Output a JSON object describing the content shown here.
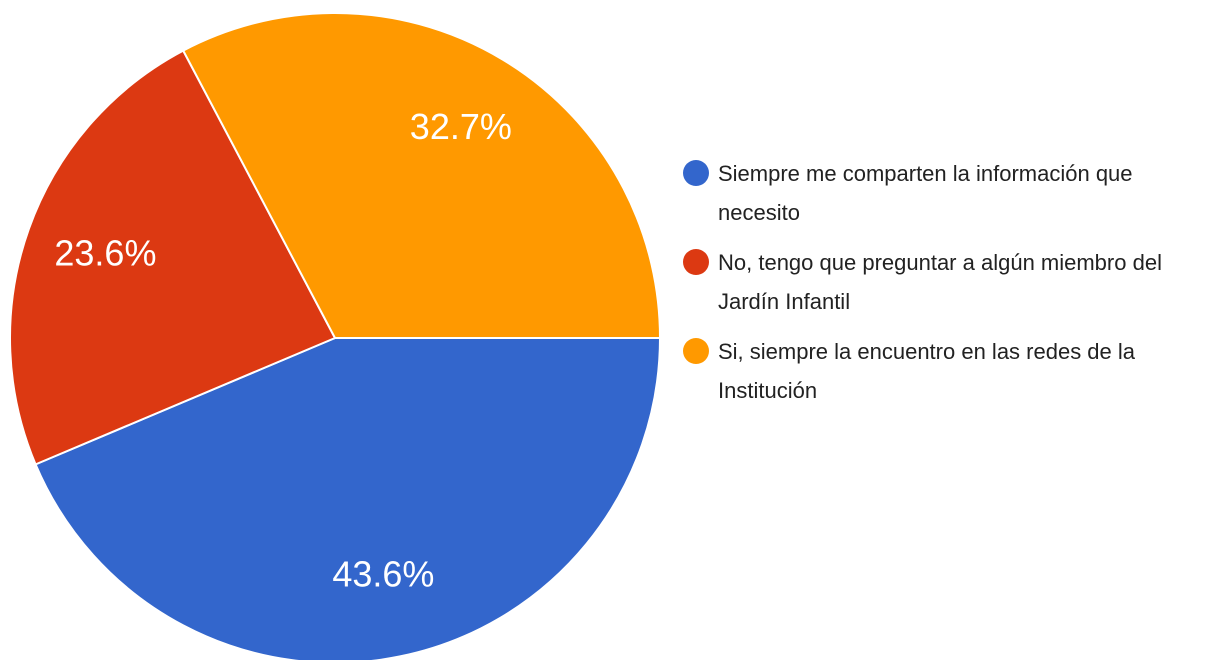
{
  "chart_data": {
    "type": "pie",
    "categories": [
      "Siempre me comparten la información que necesito",
      "No, tengo que preguntar a algún miembro del Jardín Infantil",
      "Si, siempre la encuentro en las redes de la Institución"
    ],
    "values": [
      43.6,
      23.6,
      32.7
    ],
    "value_labels": [
      "43.6%",
      "23.6%",
      "32.7%"
    ],
    "colors": [
      "#3366cc",
      "#dc3912",
      "#ff9900"
    ],
    "legend": "right"
  }
}
